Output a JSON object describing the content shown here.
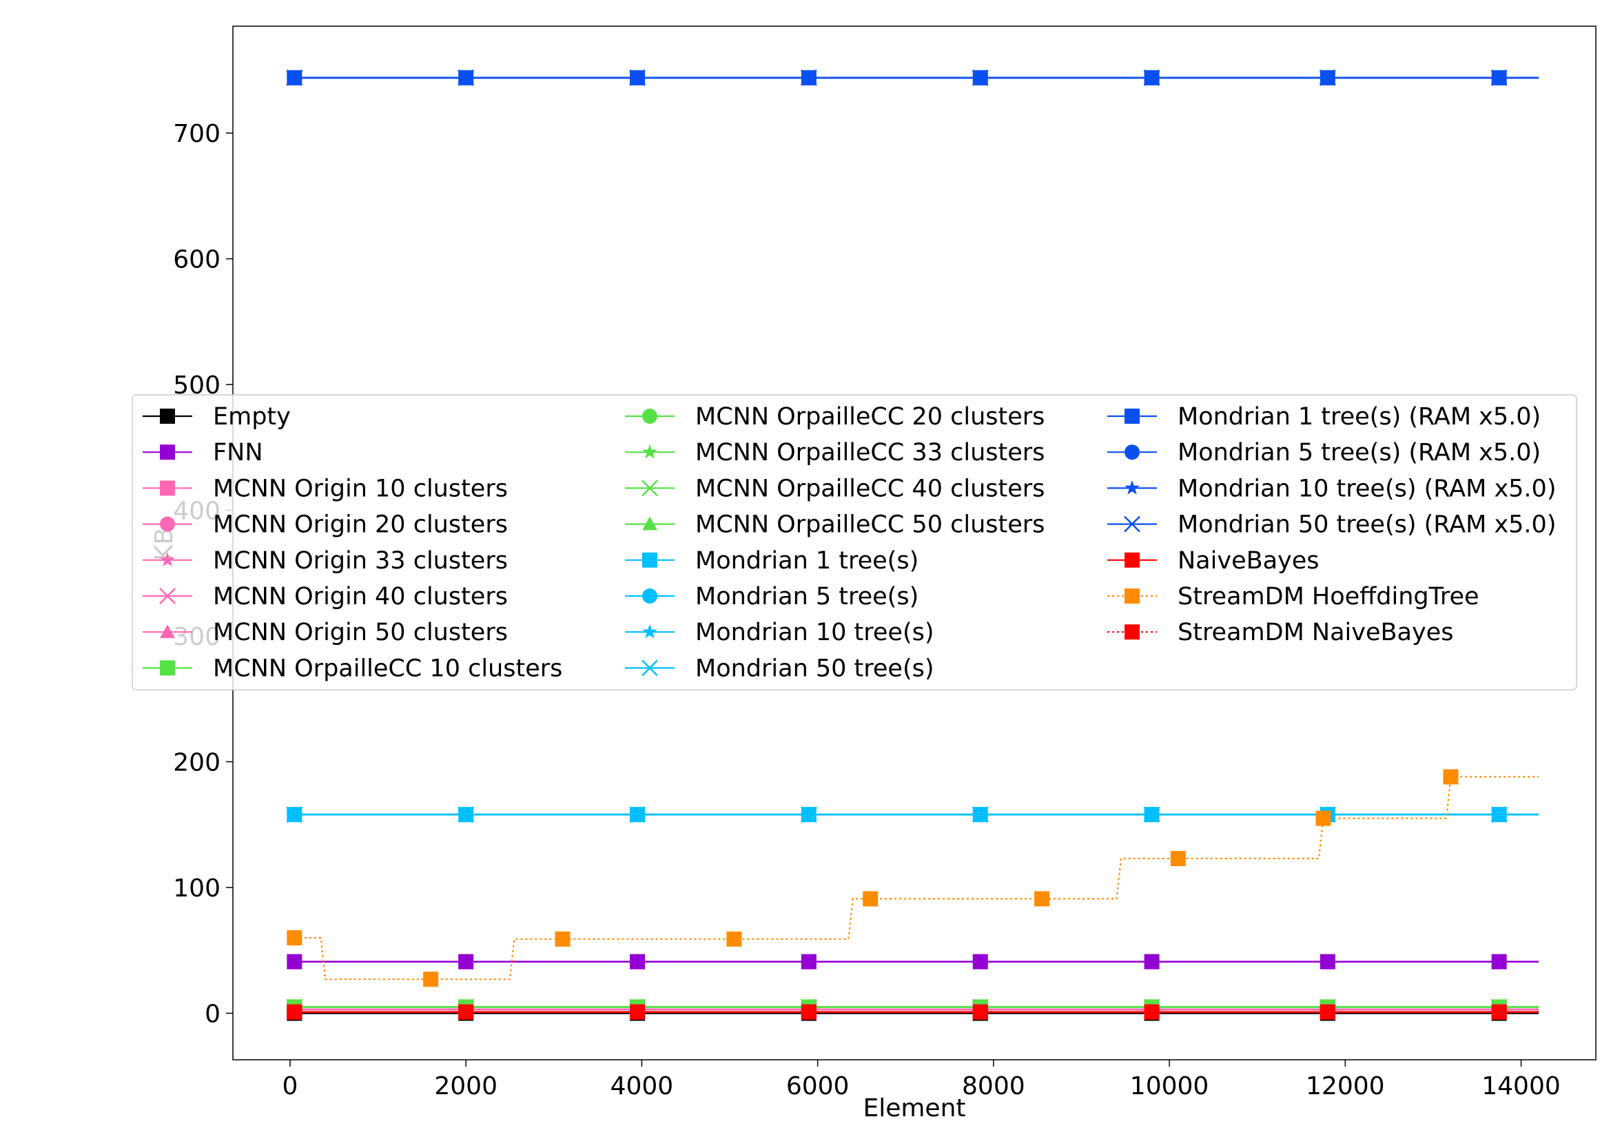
{
  "chart_data": {
    "type": "line",
    "title": "",
    "xlabel": "Element",
    "ylabel": "KB",
    "xlim": [
      -650,
      14850
    ],
    "ylim": [
      -37,
      785
    ],
    "x_ticks": [
      0,
      2000,
      4000,
      6000,
      8000,
      10000,
      12000,
      14000
    ],
    "y_ticks": [
      0,
      100,
      200,
      300,
      400,
      500,
      600,
      700
    ],
    "grid": false,
    "legend_position": "center",
    "legend_columns": 3,
    "marker_x": [
      50,
      2000,
      3950,
      5900,
      7850,
      9800,
      11800,
      13750
    ],
    "series": [
      {
        "name": "Empty",
        "color": "#000000",
        "marker": "square",
        "linestyle": "solid",
        "value": 0
      },
      {
        "name": "FNN",
        "color": "#9400D3",
        "marker": "square",
        "linestyle": "solid",
        "value": 41
      },
      {
        "name": "MCNN Origin 10 clusters",
        "color": "#FF69B4",
        "marker": "square",
        "linestyle": "solid",
        "value": 3
      },
      {
        "name": "MCNN Origin 20 clusters",
        "color": "#FF69B4",
        "marker": "circle",
        "linestyle": "solid",
        "value": 3
      },
      {
        "name": "MCNN Origin 33 clusters",
        "color": "#FF69B4",
        "marker": "star",
        "linestyle": "solid",
        "value": 3
      },
      {
        "name": "MCNN Origin 40 clusters",
        "color": "#FF69B4",
        "marker": "x",
        "linestyle": "solid",
        "value": 3
      },
      {
        "name": "MCNN Origin 50 clusters",
        "color": "#FF69B4",
        "marker": "triangle",
        "linestyle": "solid",
        "value": 3
      },
      {
        "name": "MCNN OrpailleCC 10 clusters",
        "color": "#55E045",
        "marker": "square",
        "linestyle": "solid",
        "value": 5
      },
      {
        "name": "MCNN OrpailleCC 20 clusters",
        "color": "#55E045",
        "marker": "circle",
        "linestyle": "solid",
        "value": 5
      },
      {
        "name": "MCNN OrpailleCC 33 clusters",
        "color": "#55E045",
        "marker": "star",
        "linestyle": "solid",
        "value": 5
      },
      {
        "name": "MCNN OrpailleCC 40 clusters",
        "color": "#55E045",
        "marker": "x",
        "linestyle": "solid",
        "value": 5
      },
      {
        "name": "MCNN OrpailleCC 50 clusters",
        "color": "#55E045",
        "marker": "triangle",
        "linestyle": "solid",
        "value": 5
      },
      {
        "name": "Mondrian 1 tree(s)",
        "color": "#00BFFF",
        "marker": "square",
        "linestyle": "solid",
        "value": 158
      },
      {
        "name": "Mondrian 5 tree(s)",
        "color": "#00BFFF",
        "marker": "circle",
        "linestyle": "solid",
        "value": 158
      },
      {
        "name": "Mondrian 10 tree(s)",
        "color": "#00BFFF",
        "marker": "star",
        "linestyle": "solid",
        "value": 158
      },
      {
        "name": "Mondrian 50 tree(s)",
        "color": "#00BFFF",
        "marker": "x",
        "linestyle": "solid",
        "value": 158
      },
      {
        "name": "Mondrian 1 tree(s) (RAM x5.0)",
        "color": "#0A4FF0",
        "marker": "square",
        "linestyle": "solid",
        "value": 744
      },
      {
        "name": "Mondrian 5 tree(s) (RAM x5.0)",
        "color": "#0A4FF0",
        "marker": "circle",
        "linestyle": "solid",
        "value": 744
      },
      {
        "name": "Mondrian 10 tree(s) (RAM x5.0)",
        "color": "#0A4FF0",
        "marker": "star",
        "linestyle": "solid",
        "value": 744
      },
      {
        "name": "Mondrian 50 tree(s) (RAM x5.0)",
        "color": "#0A4FF0",
        "marker": "x",
        "linestyle": "solid",
        "value": 744
      },
      {
        "name": "NaiveBayes",
        "color": "#FF0000",
        "marker": "square",
        "linestyle": "solid",
        "value": 1
      },
      {
        "name": "StreamDM HoeffdingTree",
        "color": "#FF8C00",
        "marker": "square",
        "linestyle": "dotted",
        "steps": [
          [
            0,
            60
          ],
          [
            350,
            60
          ],
          [
            400,
            27
          ],
          [
            2500,
            27
          ],
          [
            2550,
            59
          ],
          [
            6350,
            59
          ],
          [
            6400,
            91
          ],
          [
            9400,
            91
          ],
          [
            9450,
            123
          ],
          [
            11700,
            123
          ],
          [
            11750,
            155
          ],
          [
            13150,
            155
          ],
          [
            13200,
            188
          ],
          [
            14200,
            188
          ]
        ],
        "markers": [
          [
            50,
            60
          ],
          [
            1600,
            27
          ],
          [
            3100,
            59
          ],
          [
            5050,
            59
          ],
          [
            6600,
            91
          ],
          [
            8550,
            91
          ],
          [
            10100,
            123
          ],
          [
            11750,
            155
          ],
          [
            13200,
            188
          ]
        ]
      },
      {
        "name": "StreamDM NaiveBayes",
        "color": "#FF0000",
        "marker": "square",
        "linestyle": "dotted",
        "value": 1
      }
    ],
    "x_end": 14200
  }
}
